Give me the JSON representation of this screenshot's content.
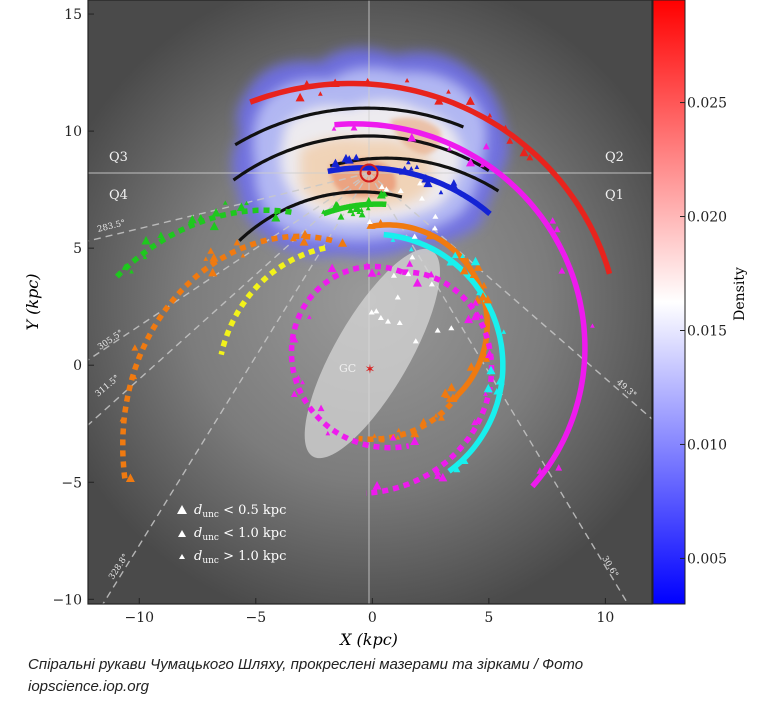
{
  "caption": {
    "line1": "Спіральні рукави Чумацького Шляху, прокреслені мазерами та зірками / Фото",
    "line2": "iopscience.iop.org"
  },
  "chart_data": {
    "type": "scatter",
    "title": "",
    "xlabel": "X (kpc)",
    "ylabel": "Y (kpc)",
    "xlim": [
      -12.2,
      12
    ],
    "ylim": [
      -10.2,
      15.6
    ],
    "xticks": [
      "−10",
      "−5",
      "0",
      "5",
      "10"
    ],
    "yticks": [
      "−10",
      "−5",
      "0",
      "5",
      "10",
      "15"
    ],
    "grid": false,
    "sun": {
      "x": 0,
      "y": 8.15
    },
    "galactic_center": {
      "x": 0,
      "y": 0,
      "label": "GC"
    },
    "bar": {
      "cx": 0,
      "cy": 0.5,
      "half_length": 5.1,
      "half_width": 1.6,
      "angle_deg": 60
    },
    "quadrant_labels": [
      {
        "text": "Q3",
        "x": -10.7,
        "y": 8.7
      },
      {
        "text": "Q2",
        "x": 10.6,
        "y": 8.7
      },
      {
        "text": "Q4",
        "x": -10.7,
        "y": 7.3
      },
      {
        "text": "Q1",
        "x": 10.6,
        "y": 7.3
      }
    ],
    "sightlines": [
      {
        "label": "283.5°"
      },
      {
        "label": "305.5°"
      },
      {
        "label": "311.5°"
      },
      {
        "label": "328.8°"
      },
      {
        "label": "49.3°"
      },
      {
        "label": "30.6°"
      }
    ],
    "colorbar": {
      "label": "Density",
      "min": 0.003,
      "max": 0.0295,
      "ticks": [
        "0.005",
        "0.010",
        "0.015",
        "0.020",
        "0.025"
      ],
      "tick_values": [
        0.005,
        0.01,
        0.015,
        0.02,
        0.025
      ],
      "colors": [
        "#0000ff",
        "#ffffff",
        "#ff0000"
      ]
    },
    "legend": {
      "placement": "lower-left",
      "entries": [
        {
          "label": "d",
          "sub": "unc",
          "rest": " < 0.5 kpc"
        },
        {
          "label": "d",
          "sub": "unc",
          "rest": " < 1.0 kpc"
        },
        {
          "label": "d",
          "sub": "unc",
          "rest": " > 1.0 kpc"
        }
      ]
    },
    "series": [
      {
        "color": "#e8231d",
        "style": "solid",
        "center": [
          0,
          0
        ],
        "r_start": 12.4,
        "r_end": 10.9,
        "theta_start": 115,
        "theta_end": 21
      },
      {
        "color": "#111111",
        "style": "solid",
        "center": [
          0,
          0
        ],
        "r_start": 11.1,
        "r_end": 10.9,
        "theta_start": 122,
        "theta_end": 69
      },
      {
        "color": "#111111",
        "style": "solid",
        "center": [
          0,
          0
        ],
        "r_start": 9.9,
        "r_end": 9.7,
        "theta_start": 127,
        "theta_end": 59
      },
      {
        "color": "#111111",
        "style": "solid",
        "center": [
          0,
          0
        ],
        "r_start": 8.7,
        "r_end": 9.2,
        "theta_start": 102,
        "theta_end": 54
      },
      {
        "color": "#111111",
        "style": "solid",
        "center": [
          0,
          0
        ],
        "r_start": 7.8,
        "r_end": 7.3,
        "theta_start": 137,
        "theta_end": 80
      },
      {
        "color": "#ee1aee",
        "style": "solid",
        "center": [
          0,
          0
        ],
        "r_start": 10.4,
        "r_end": 8.6,
        "theta_start": 99,
        "theta_end": -37
      },
      {
        "color": "#1423d4",
        "style": "solid",
        "center": [
          0,
          0
        ],
        "r_start": 8.5,
        "r_end": 8.2,
        "theta_start": 103,
        "theta_end": 52
      },
      {
        "color": "#1ec81e",
        "style": "solid",
        "center": [
          0,
          0
        ],
        "r_start": 6.8,
        "r_end": 6.9,
        "theta_start": 108,
        "theta_end": 85
      },
      {
        "color": "#1ec81e",
        "style": "dashed",
        "center": [
          0,
          0
        ],
        "r_start": 7.4,
        "r_end": 11.6,
        "theta_start": 118,
        "theta_end": 161
      },
      {
        "color": "#f07a10",
        "style": "solid",
        "center": [
          0.7,
          1.7
        ],
        "r_start": 4.3,
        "r_end": 4.2,
        "theta_start": 100,
        "theta_end": -45
      },
      {
        "color": "#f07a10",
        "style": "dashed",
        "center": [
          0.7,
          1.7
        ],
        "r_start": 4.2,
        "r_end": 5.0,
        "theta_start": -45,
        "theta_end": -105
      },
      {
        "color": "#f07a10",
        "style": "dashed",
        "center": [
          0,
          0
        ],
        "r_start": 5.6,
        "r_end": 11.7,
        "theta_start": 108,
        "theta_end": 205
      },
      {
        "color": "#f2f21a",
        "style": "dashed",
        "center": [
          0,
          0
        ],
        "r_start": 5.4,
        "r_end": 6.5,
        "theta_start": 112,
        "theta_end": 176
      },
      {
        "color": "#18f0ee",
        "style": "solid",
        "center": [
          0,
          0
        ],
        "r_start": 5.6,
        "r_end": 5.6,
        "theta_start": 85,
        "theta_end": -54
      },
      {
        "color": "#ee1aee",
        "style": "dashed",
        "center": [
          0.4,
          0.9
        ],
        "r_start": 3.2,
        "r_end": 6.4,
        "theta_start": 74,
        "theta_end": -96
      },
      {
        "color": "#ee1aee",
        "style": "dashed",
        "center": [
          0.4,
          0.9
        ],
        "r_start": 3.2,
        "r_end": 4.5,
        "theta_start": 74,
        "theta_end": 285
      }
    ]
  }
}
